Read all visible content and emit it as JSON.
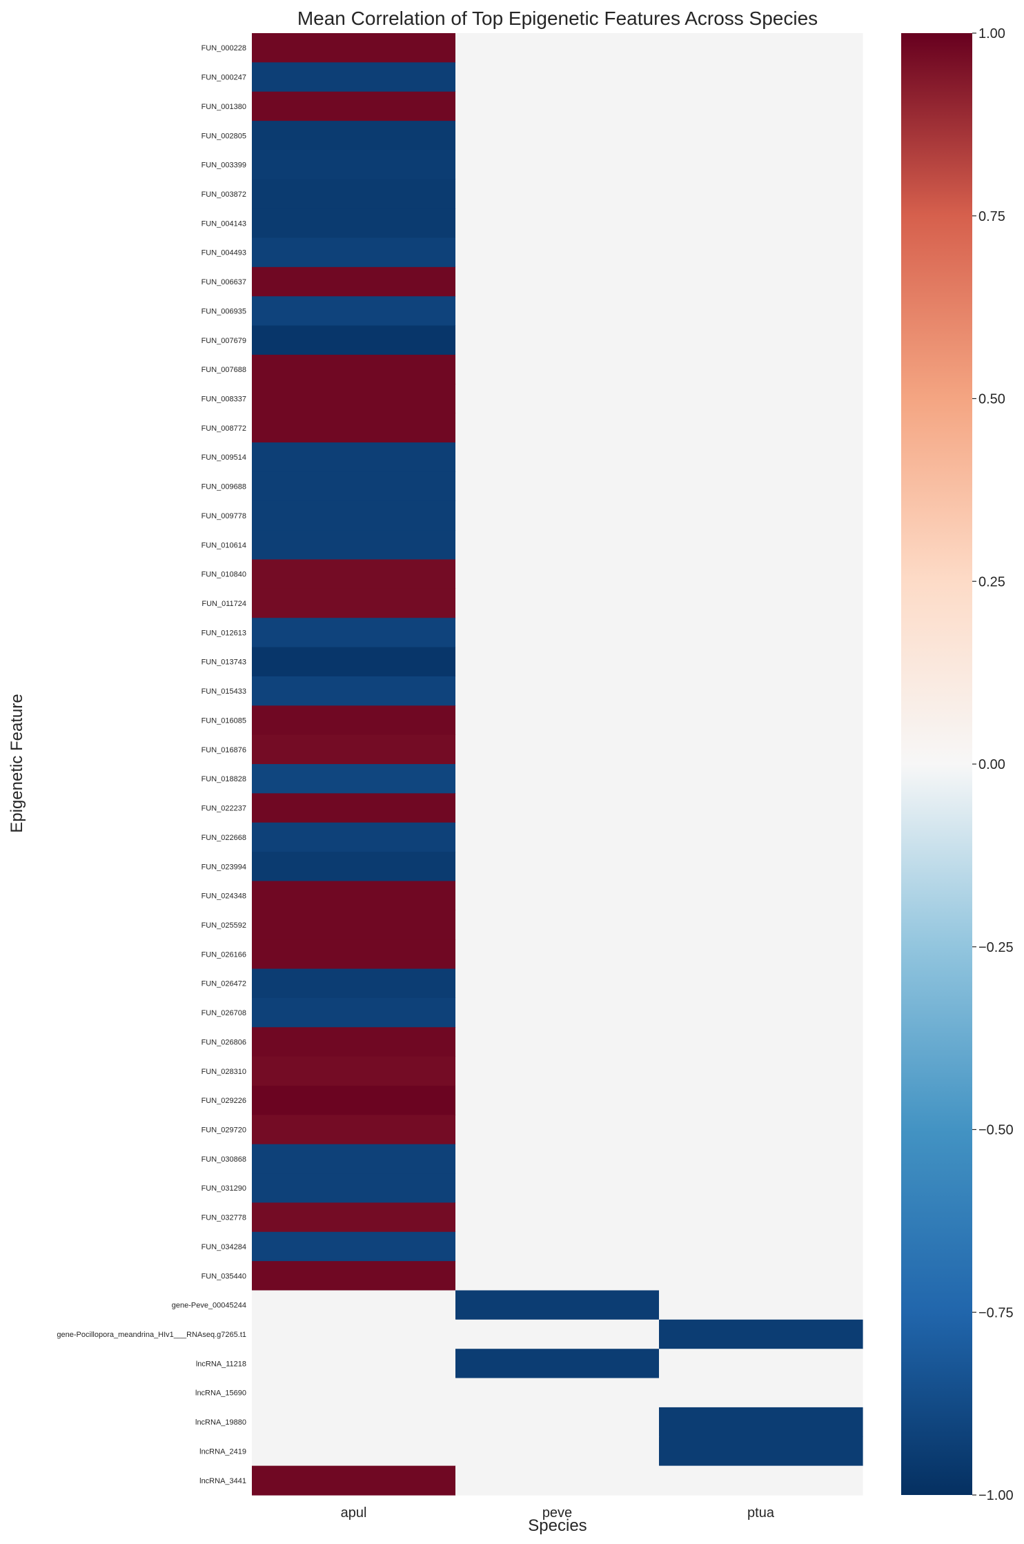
{
  "chart_data": {
    "type": "heatmap",
    "title": "Mean Correlation of Top Epigenetic Features Across Species",
    "xlabel": "Species",
    "ylabel": "Epigenetic Feature",
    "colormap": "RdBu_r",
    "vmin": -1.0,
    "vmax": 1.0,
    "missing_color": "#f4f4f4",
    "colorbar_ticks": [
      "1.00",
      "0.75",
      "0.50",
      "0.25",
      "0.00",
      "−0.25",
      "−0.50",
      "−0.75",
      "−1.00"
    ],
    "colorbar_tick_values": [
      1.0,
      0.75,
      0.5,
      0.25,
      0.0,
      -0.25,
      -0.5,
      -0.75,
      -1.0
    ],
    "columns": [
      "apul",
      "peve",
      "ptua"
    ],
    "rows": [
      {
        "label": "FUN_000228",
        "values": [
          0.98,
          null,
          null
        ]
      },
      {
        "label": "FUN_000247",
        "values": [
          -0.93,
          null,
          null
        ]
      },
      {
        "label": "FUN_001380",
        "values": [
          0.98,
          null,
          null
        ]
      },
      {
        "label": "FUN_002805",
        "values": [
          -0.95,
          null,
          null
        ]
      },
      {
        "label": "FUN_003399",
        "values": [
          -0.94,
          null,
          null
        ]
      },
      {
        "label": "FUN_003872",
        "values": [
          -0.95,
          null,
          null
        ]
      },
      {
        "label": "FUN_004143",
        "values": [
          -0.95,
          null,
          null
        ]
      },
      {
        "label": "FUN_004493",
        "values": [
          -0.92,
          null,
          null
        ]
      },
      {
        "label": "FUN_006637",
        "values": [
          0.98,
          null,
          null
        ]
      },
      {
        "label": "FUN_006935",
        "values": [
          -0.91,
          null,
          null
        ]
      },
      {
        "label": "FUN_007679",
        "values": [
          -0.97,
          null,
          null
        ]
      },
      {
        "label": "FUN_007688",
        "values": [
          0.98,
          null,
          null
        ]
      },
      {
        "label": "FUN_008337",
        "values": [
          0.98,
          null,
          null
        ]
      },
      {
        "label": "FUN_008772",
        "values": [
          0.98,
          null,
          null
        ]
      },
      {
        "label": "FUN_009514",
        "values": [
          -0.93,
          null,
          null
        ]
      },
      {
        "label": "FUN_009688",
        "values": [
          -0.93,
          null,
          null
        ]
      },
      {
        "label": "FUN_009778",
        "values": [
          -0.93,
          null,
          null
        ]
      },
      {
        "label": "FUN_010614",
        "values": [
          -0.93,
          null,
          null
        ]
      },
      {
        "label": "FUN_010840",
        "values": [
          0.97,
          null,
          null
        ]
      },
      {
        "label": "FUN_011724",
        "values": [
          0.97,
          null,
          null
        ]
      },
      {
        "label": "FUN_012613",
        "values": [
          -0.91,
          null,
          null
        ]
      },
      {
        "label": "FUN_013743",
        "values": [
          -0.97,
          null,
          null
        ]
      },
      {
        "label": "FUN_015433",
        "values": [
          -0.91,
          null,
          null
        ]
      },
      {
        "label": "FUN_016085",
        "values": [
          0.98,
          null,
          null
        ]
      },
      {
        "label": "FUN_016876",
        "values": [
          0.97,
          null,
          null
        ]
      },
      {
        "label": "FUN_018828",
        "values": [
          -0.9,
          null,
          null
        ]
      },
      {
        "label": "FUN_022237",
        "values": [
          0.98,
          null,
          null
        ]
      },
      {
        "label": "FUN_022668",
        "values": [
          -0.92,
          null,
          null
        ]
      },
      {
        "label": "FUN_023994",
        "values": [
          -0.95,
          null,
          null
        ]
      },
      {
        "label": "FUN_024348",
        "values": [
          0.98,
          null,
          null
        ]
      },
      {
        "label": "FUN_025592",
        "values": [
          0.98,
          null,
          null
        ]
      },
      {
        "label": "FUN_026166",
        "values": [
          0.98,
          null,
          null
        ]
      },
      {
        "label": "FUN_026472",
        "values": [
          -0.94,
          null,
          null
        ]
      },
      {
        "label": "FUN_026708",
        "values": [
          -0.92,
          null,
          null
        ]
      },
      {
        "label": "FUN_026806",
        "values": [
          0.98,
          null,
          null
        ]
      },
      {
        "label": "FUN_028310",
        "values": [
          0.97,
          null,
          null
        ]
      },
      {
        "label": "FUN_029226",
        "values": [
          0.99,
          null,
          null
        ]
      },
      {
        "label": "FUN_029720",
        "values": [
          0.97,
          null,
          null
        ]
      },
      {
        "label": "FUN_030868",
        "values": [
          -0.92,
          null,
          null
        ]
      },
      {
        "label": "FUN_031290",
        "values": [
          -0.92,
          null,
          null
        ]
      },
      {
        "label": "FUN_032778",
        "values": [
          0.97,
          null,
          null
        ]
      },
      {
        "label": "FUN_034284",
        "values": [
          -0.91,
          null,
          null
        ]
      },
      {
        "label": "FUN_035440",
        "values": [
          0.98,
          null,
          null
        ]
      },
      {
        "label": "gene-Peve_00045244",
        "values": [
          null,
          -0.94,
          null
        ]
      },
      {
        "label": "gene-Pocillopora_meandrina_HIv1___RNAseq.g7265.t1",
        "values": [
          null,
          null,
          -0.94
        ]
      },
      {
        "label": "lncRNA_11218",
        "values": [
          null,
          -0.94,
          null
        ]
      },
      {
        "label": "lncRNA_15690",
        "values": [
          null,
          null,
          null
        ]
      },
      {
        "label": "lncRNA_19880",
        "values": [
          null,
          null,
          -0.94
        ]
      },
      {
        "label": "lncRNA_2419",
        "values": [
          null,
          null,
          -0.94
        ]
      },
      {
        "label": "lncRNA_3441",
        "values": [
          0.98,
          null,
          null
        ]
      }
    ]
  }
}
